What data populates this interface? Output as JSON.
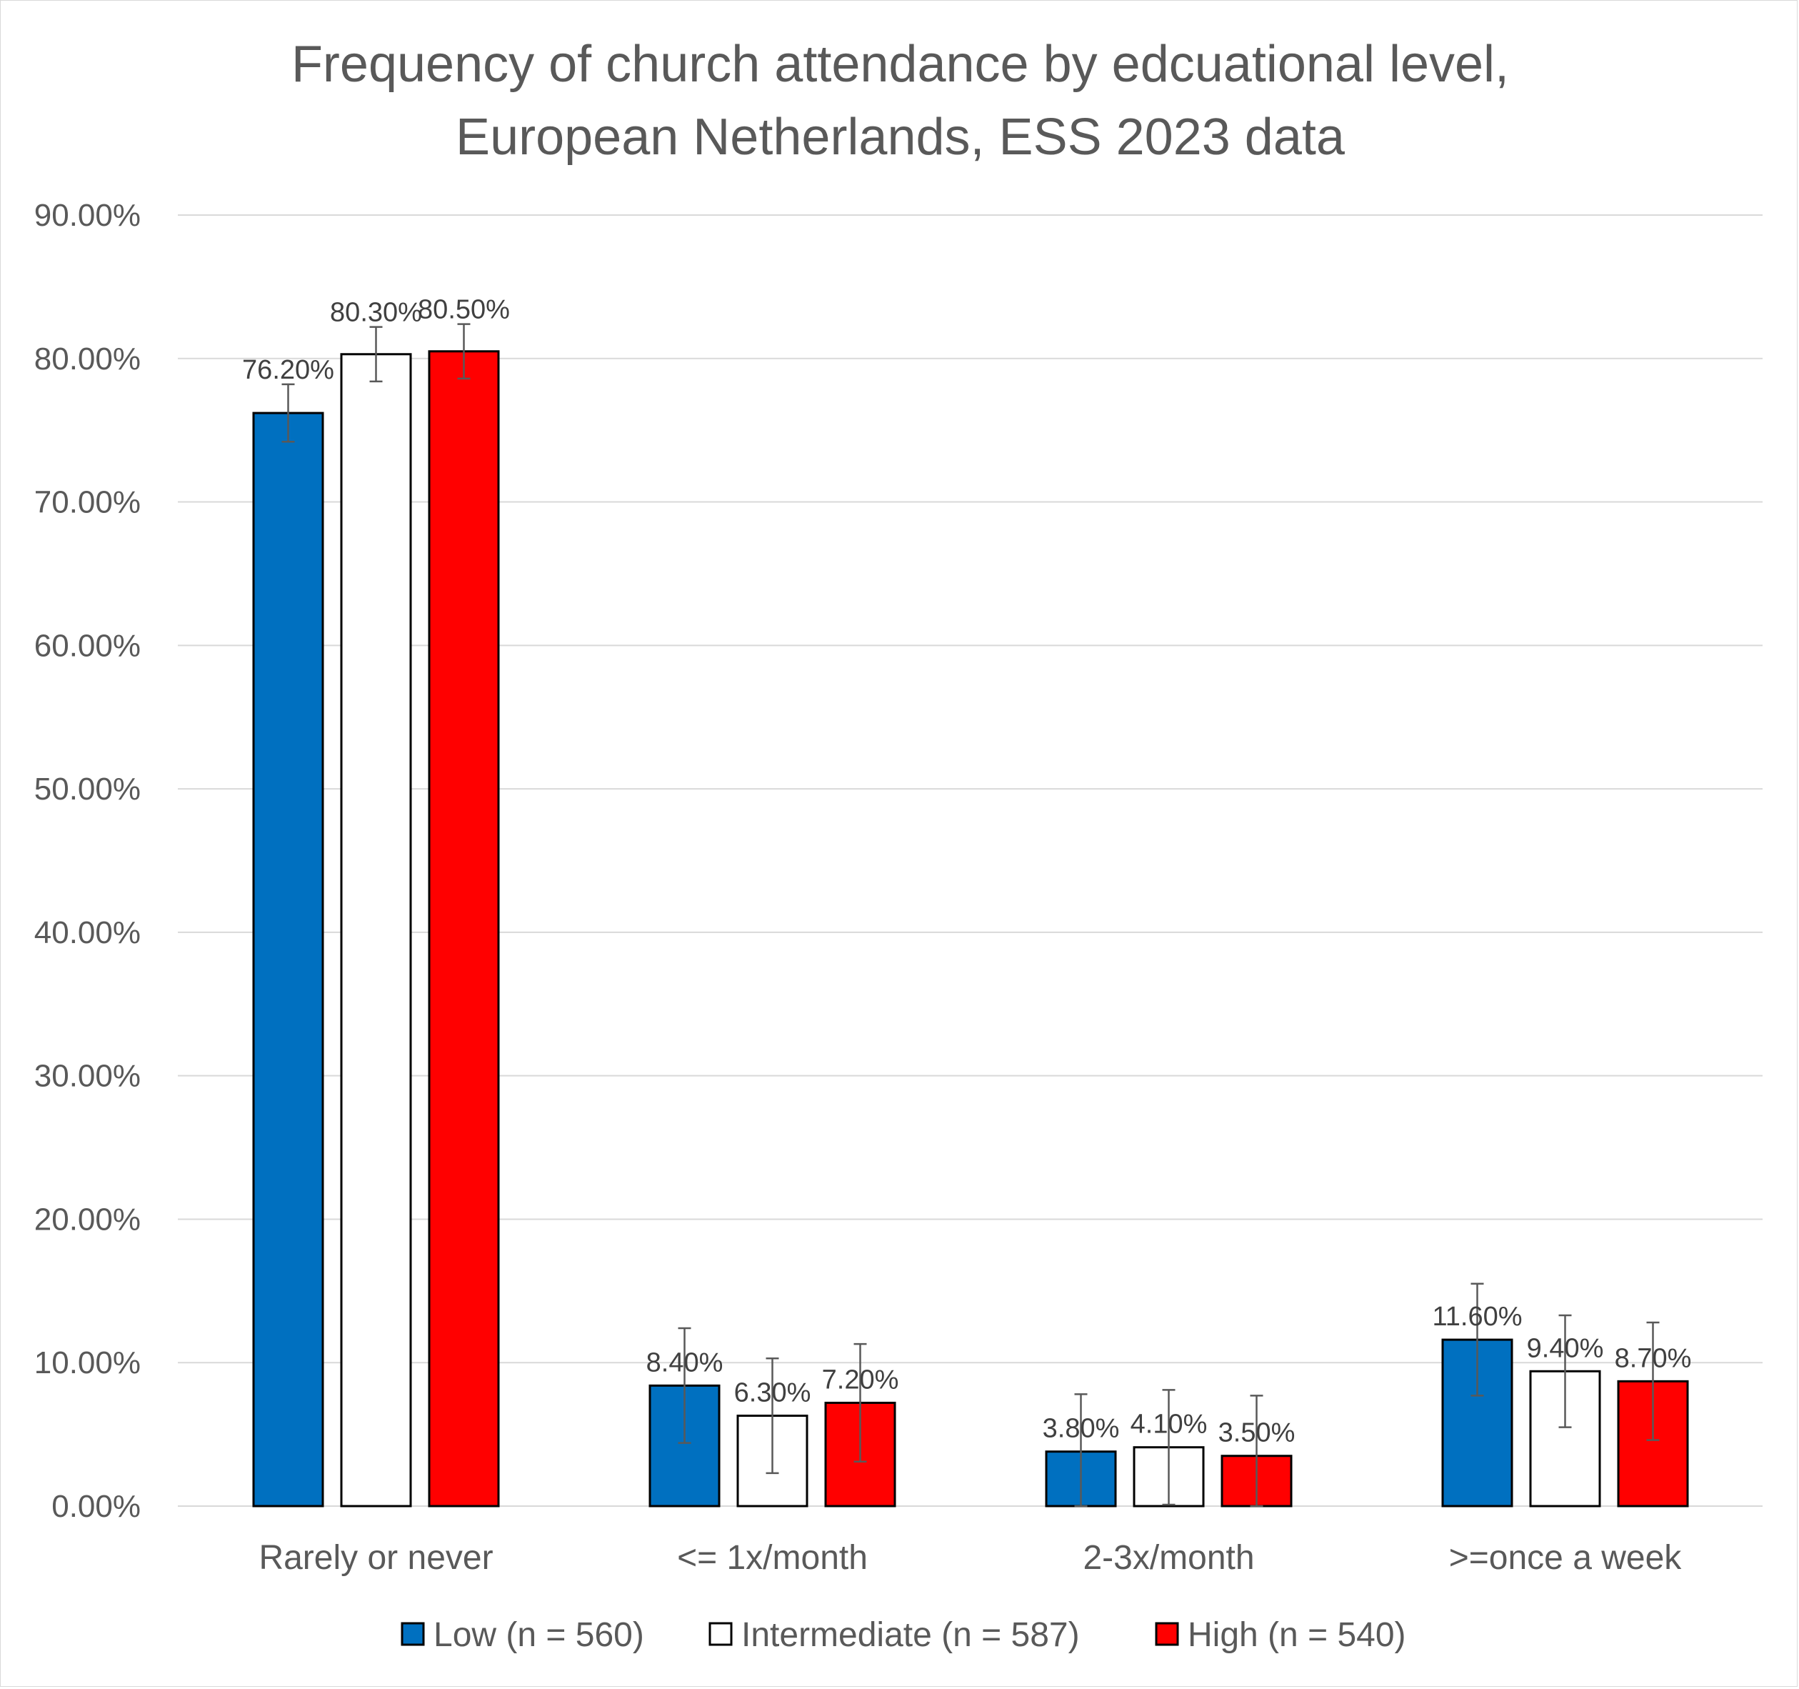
{
  "chart_data": {
    "type": "bar",
    "title": [
      "Frequency of church attendance by edcuational level,",
      "European Netherlands, ESS 2023 data"
    ],
    "categories": [
      "Rarely or never",
      "<= 1x/month",
      "2-3x/month",
      ">=once a week"
    ],
    "series": [
      {
        "name": "Low (n = 560)",
        "color": "#0070C0",
        "values": [
          76.2,
          8.4,
          3.8,
          11.6
        ],
        "labels": [
          "76.20%",
          "8.40%",
          "3.80%",
          "11.60%"
        ],
        "error": [
          2.0,
          4.0,
          4.0,
          3.9
        ]
      },
      {
        "name": "Intermediate (n = 587)",
        "color": "#FFFFFF",
        "values": [
          80.3,
          6.3,
          4.1,
          9.4
        ],
        "labels": [
          "80.30%",
          "6.30%",
          "4.10%",
          "9.40%"
        ],
        "error": [
          1.9,
          4.0,
          4.0,
          3.9
        ]
      },
      {
        "name": "High (n = 540)",
        "color": "#FF0000",
        "values": [
          80.5,
          7.2,
          3.5,
          8.7
        ],
        "labels": [
          "80.50%",
          "7.20%",
          "3.50%",
          "8.70%"
        ],
        "error": [
          1.9,
          4.1,
          4.2,
          4.1
        ]
      }
    ],
    "xlabel": "",
    "ylabel": "",
    "ylim": [
      0,
      90
    ],
    "yticks": [
      "0.00%",
      "10.00%",
      "20.00%",
      "30.00%",
      "40.00%",
      "50.00%",
      "60.00%",
      "70.00%",
      "80.00%",
      "90.00%"
    ],
    "grid": true,
    "legend_position": "bottom",
    "colors": {
      "gridline": "#D9D9D9",
      "text": "#595959",
      "bar_outline": "#000000",
      "error_bar": "#595959"
    }
  }
}
